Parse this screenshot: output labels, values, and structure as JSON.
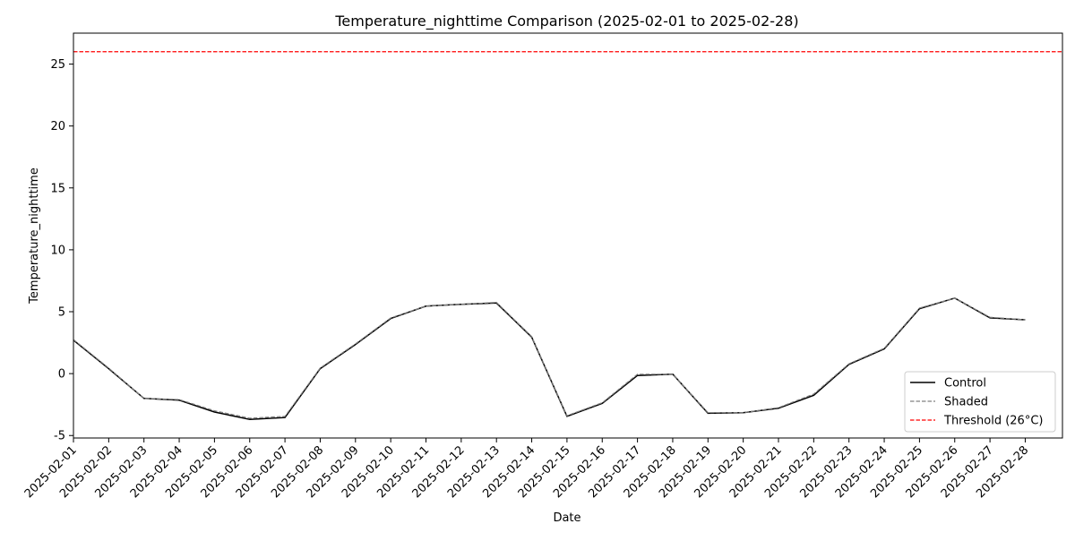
{
  "chart_data": {
    "type": "line",
    "title": "Temperature_nighttime Comparison (2025-02-01 to 2025-02-28)",
    "xlabel": "Date",
    "ylabel": "Temperature_nighttime",
    "x": [
      "2025-02-01",
      "2025-02-02",
      "2025-02-03",
      "2025-02-04",
      "2025-02-05",
      "2025-02-06",
      "2025-02-07",
      "2025-02-08",
      "2025-02-09",
      "2025-02-10",
      "2025-02-11",
      "2025-02-12",
      "2025-02-13",
      "2025-02-14",
      "2025-02-15",
      "2025-02-16",
      "2025-02-17",
      "2025-02-18",
      "2025-02-19",
      "2025-02-20",
      "2025-02-21",
      "2025-02-22",
      "2025-02-23",
      "2025-02-24",
      "2025-02-25",
      "2025-02-26",
      "2025-02-27",
      "2025-02-28"
    ],
    "ylim": [
      -5.2,
      27.5
    ],
    "yticks": [
      -5,
      0,
      5,
      10,
      15,
      20,
      25
    ],
    "grid": false,
    "legend_position": "bottom-right",
    "series": [
      {
        "name": "Control",
        "color": "#000000",
        "dash": "solid",
        "values": [
          2.7,
          0.4,
          -2.0,
          -2.15,
          -3.1,
          -3.7,
          -3.55,
          0.4,
          2.35,
          4.45,
          5.45,
          5.6,
          5.7,
          2.95,
          -3.45,
          -2.4,
          -0.15,
          -0.05,
          -3.2,
          -3.15,
          -2.8,
          -1.75,
          0.75,
          2.0,
          5.25,
          6.1,
          4.5,
          4.35
        ]
      },
      {
        "name": "Shaded",
        "color": "#808080",
        "dash": "dashed",
        "values": [
          2.75,
          0.45,
          -2.0,
          -2.1,
          -3.0,
          -3.6,
          -3.45,
          0.45,
          2.4,
          4.5,
          5.45,
          5.6,
          5.75,
          3.0,
          -3.4,
          -2.35,
          -0.05,
          -0.05,
          -3.15,
          -3.15,
          -2.75,
          -1.65,
          0.8,
          2.05,
          5.3,
          6.1,
          4.55,
          4.35
        ]
      }
    ],
    "threshold": {
      "name": "Threshold (26°C)",
      "value": 26,
      "color": "#ff0000",
      "dash": "dashed"
    }
  }
}
